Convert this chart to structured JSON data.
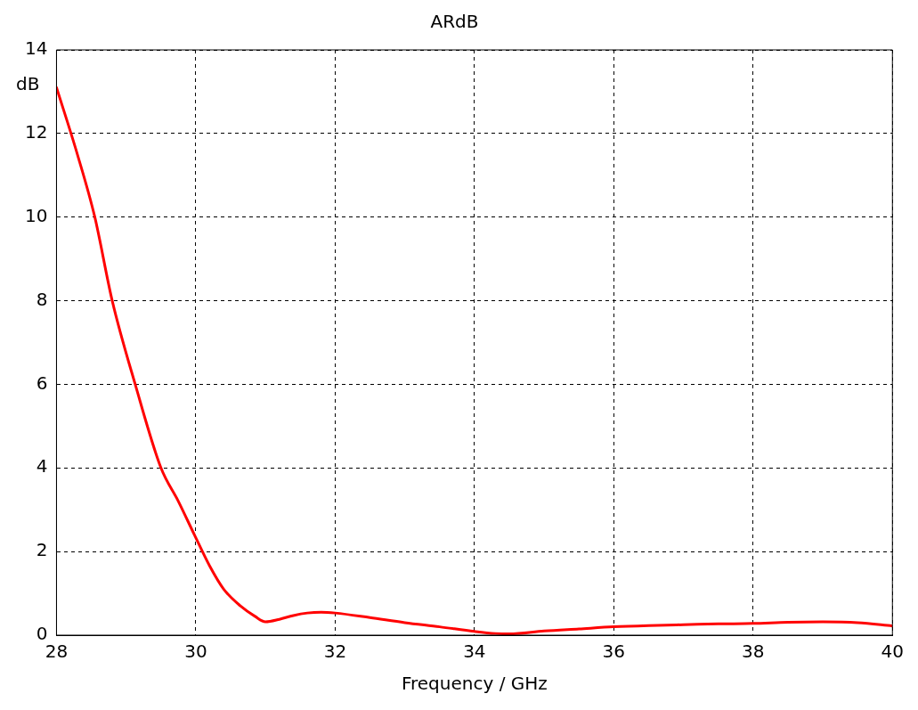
{
  "chart_data": {
    "type": "line",
    "title": "ARdB",
    "xlabel": "Frequency / GHz",
    "ylabel": "dB",
    "x": [
      28,
      28.3,
      28.55,
      28.8,
      29.13,
      29.5,
      29.75,
      29.98,
      30.2,
      30.4,
      30.64,
      30.85,
      31.0,
      31.2,
      31.4,
      31.6,
      31.8,
      32,
      32.5,
      33,
      33.5,
      34,
      34.3,
      34.5,
      35,
      35.5,
      36,
      36.5,
      37,
      37.5,
      38,
      38.5,
      39,
      39.5,
      40
    ],
    "series": [
      {
        "color": "#ff0000",
        "values": [
          13.1,
          11.5,
          10.0,
          8.0,
          6.0,
          4.0,
          3.2,
          2.4,
          1.65,
          1.1,
          0.7,
          0.45,
          0.32,
          0.38,
          0.47,
          0.53,
          0.55,
          0.53,
          0.42,
          0.3,
          0.2,
          0.09,
          0.04,
          0.03,
          0.1,
          0.15,
          0.2,
          0.23,
          0.25,
          0.27,
          0.28,
          0.31,
          0.32,
          0.3,
          0.22
        ]
      }
    ],
    "xlim": [
      28,
      40
    ],
    "xticks": [
      28,
      30,
      32,
      34,
      36,
      38,
      40
    ],
    "ylim": [
      0,
      14
    ],
    "yticks": [
      0,
      2,
      4,
      6,
      8,
      10,
      12,
      14
    ],
    "grid": true,
    "legend": false,
    "marker": "none",
    "line_style": "solid"
  }
}
